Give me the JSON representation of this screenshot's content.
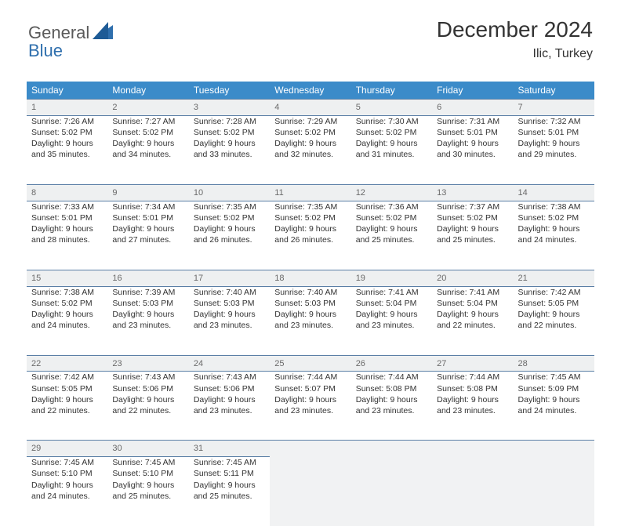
{
  "logo": {
    "word1": "General",
    "word2": "Blue",
    "word1_color": "#5a5a5a",
    "word2_color": "#2f6fad",
    "shape_color": "#2f6fad"
  },
  "header": {
    "month_title": "December 2024",
    "location": "Ilic, Turkey"
  },
  "calendar": {
    "header_bg": "#3b8bc9",
    "daynum_bg": "#eef0f1",
    "rule_color": "#5b7fa6",
    "blank_bg": "#f1f2f3",
    "columns": [
      "Sunday",
      "Monday",
      "Tuesday",
      "Wednesday",
      "Thursday",
      "Friday",
      "Saturday"
    ],
    "weeks": [
      [
        {
          "n": "1",
          "sr": "7:26 AM",
          "ss": "5:02 PM",
          "dl": "9 hours and 35 minutes."
        },
        {
          "n": "2",
          "sr": "7:27 AM",
          "ss": "5:02 PM",
          "dl": "9 hours and 34 minutes."
        },
        {
          "n": "3",
          "sr": "7:28 AM",
          "ss": "5:02 PM",
          "dl": "9 hours and 33 minutes."
        },
        {
          "n": "4",
          "sr": "7:29 AM",
          "ss": "5:02 PM",
          "dl": "9 hours and 32 minutes."
        },
        {
          "n": "5",
          "sr": "7:30 AM",
          "ss": "5:02 PM",
          "dl": "9 hours and 31 minutes."
        },
        {
          "n": "6",
          "sr": "7:31 AM",
          "ss": "5:01 PM",
          "dl": "9 hours and 30 minutes."
        },
        {
          "n": "7",
          "sr": "7:32 AM",
          "ss": "5:01 PM",
          "dl": "9 hours and 29 minutes."
        }
      ],
      [
        {
          "n": "8",
          "sr": "7:33 AM",
          "ss": "5:01 PM",
          "dl": "9 hours and 28 minutes."
        },
        {
          "n": "9",
          "sr": "7:34 AM",
          "ss": "5:01 PM",
          "dl": "9 hours and 27 minutes."
        },
        {
          "n": "10",
          "sr": "7:35 AM",
          "ss": "5:02 PM",
          "dl": "9 hours and 26 minutes."
        },
        {
          "n": "11",
          "sr": "7:35 AM",
          "ss": "5:02 PM",
          "dl": "9 hours and 26 minutes."
        },
        {
          "n": "12",
          "sr": "7:36 AM",
          "ss": "5:02 PM",
          "dl": "9 hours and 25 minutes."
        },
        {
          "n": "13",
          "sr": "7:37 AM",
          "ss": "5:02 PM",
          "dl": "9 hours and 25 minutes."
        },
        {
          "n": "14",
          "sr": "7:38 AM",
          "ss": "5:02 PM",
          "dl": "9 hours and 24 minutes."
        }
      ],
      [
        {
          "n": "15",
          "sr": "7:38 AM",
          "ss": "5:02 PM",
          "dl": "9 hours and 24 minutes."
        },
        {
          "n": "16",
          "sr": "7:39 AM",
          "ss": "5:03 PM",
          "dl": "9 hours and 23 minutes."
        },
        {
          "n": "17",
          "sr": "7:40 AM",
          "ss": "5:03 PM",
          "dl": "9 hours and 23 minutes."
        },
        {
          "n": "18",
          "sr": "7:40 AM",
          "ss": "5:03 PM",
          "dl": "9 hours and 23 minutes."
        },
        {
          "n": "19",
          "sr": "7:41 AM",
          "ss": "5:04 PM",
          "dl": "9 hours and 23 minutes."
        },
        {
          "n": "20",
          "sr": "7:41 AM",
          "ss": "5:04 PM",
          "dl": "9 hours and 22 minutes."
        },
        {
          "n": "21",
          "sr": "7:42 AM",
          "ss": "5:05 PM",
          "dl": "9 hours and 22 minutes."
        }
      ],
      [
        {
          "n": "22",
          "sr": "7:42 AM",
          "ss": "5:05 PM",
          "dl": "9 hours and 22 minutes."
        },
        {
          "n": "23",
          "sr": "7:43 AM",
          "ss": "5:06 PM",
          "dl": "9 hours and 22 minutes."
        },
        {
          "n": "24",
          "sr": "7:43 AM",
          "ss": "5:06 PM",
          "dl": "9 hours and 23 minutes."
        },
        {
          "n": "25",
          "sr": "7:44 AM",
          "ss": "5:07 PM",
          "dl": "9 hours and 23 minutes."
        },
        {
          "n": "26",
          "sr": "7:44 AM",
          "ss": "5:08 PM",
          "dl": "9 hours and 23 minutes."
        },
        {
          "n": "27",
          "sr": "7:44 AM",
          "ss": "5:08 PM",
          "dl": "9 hours and 23 minutes."
        },
        {
          "n": "28",
          "sr": "7:45 AM",
          "ss": "5:09 PM",
          "dl": "9 hours and 24 minutes."
        }
      ],
      [
        {
          "n": "29",
          "sr": "7:45 AM",
          "ss": "5:10 PM",
          "dl": "9 hours and 24 minutes."
        },
        {
          "n": "30",
          "sr": "7:45 AM",
          "ss": "5:10 PM",
          "dl": "9 hours and 25 minutes."
        },
        {
          "n": "31",
          "sr": "7:45 AM",
          "ss": "5:11 PM",
          "dl": "9 hours and 25 minutes."
        },
        null,
        null,
        null,
        null
      ]
    ],
    "labels": {
      "sunrise": "Sunrise: ",
      "sunset": "Sunset: ",
      "daylight": "Daylight: "
    }
  }
}
